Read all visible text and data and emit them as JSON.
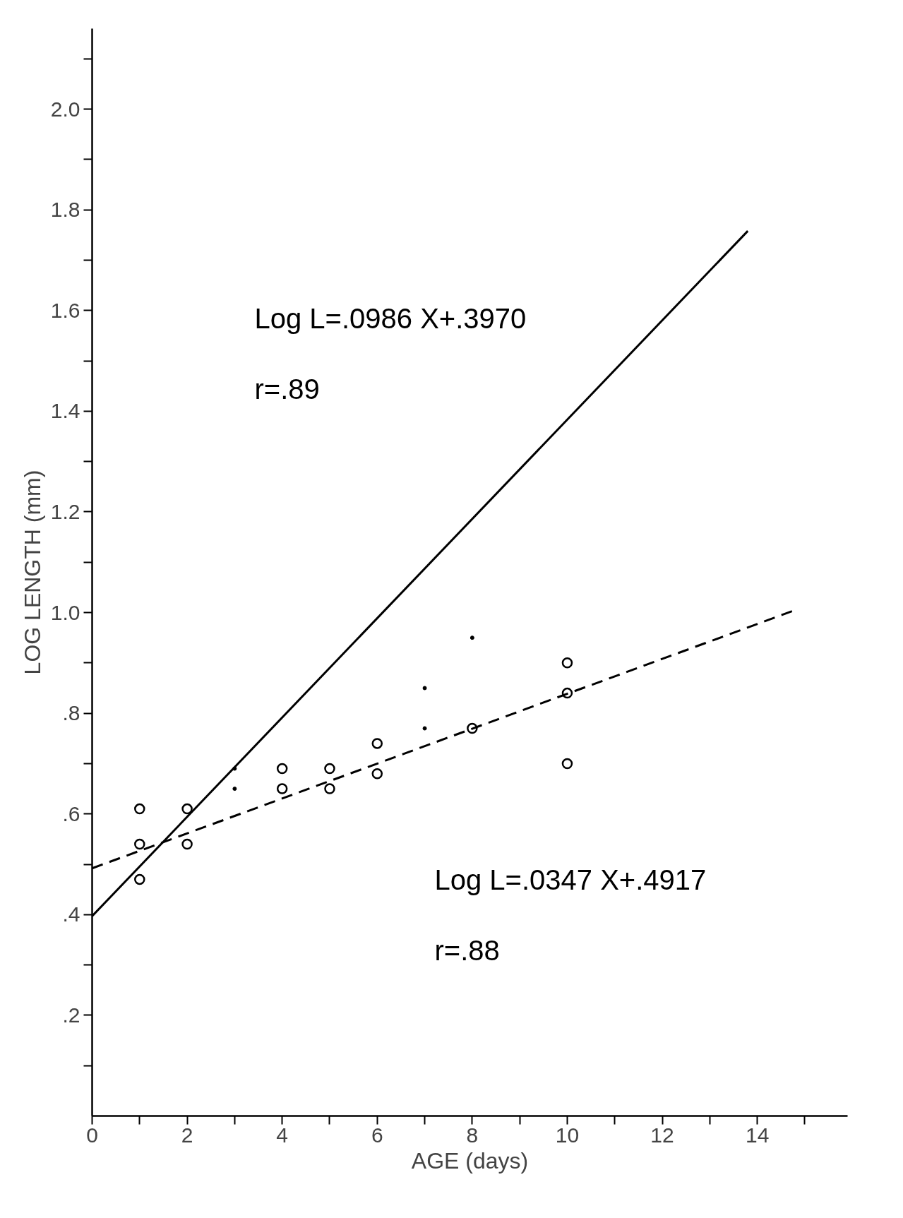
{
  "chart_data": {
    "type": "scatter",
    "xlabel": "AGE (days)",
    "ylabel": "LOG LENGTH (mm)",
    "xlim": [
      0,
      15.9
    ],
    "ylim": [
      0,
      2.16
    ],
    "xticks": [
      {
        "value": 0,
        "label": "0"
      },
      {
        "value": 1,
        "label": null
      },
      2,
      {
        "value": 3,
        "label": null
      },
      4,
      {
        "value": 5,
        "label": null
      },
      6,
      {
        "value": 7,
        "label": null
      },
      8,
      {
        "value": 9,
        "label": null
      },
      10,
      {
        "value": 11,
        "label": null
      },
      12,
      {
        "value": 13,
        "label": null
      },
      14,
      {
        "value": 15,
        "label": null
      }
    ],
    "yticks": [
      {
        "value": 0.1,
        "label": null
      },
      {
        "value": 0.2,
        "label": ".2"
      },
      {
        "value": 0.3,
        "label": null
      },
      {
        "value": 0.4,
        "label": ".4"
      },
      {
        "value": 0.5,
        "label": null
      },
      {
        "value": 0.6,
        "label": ".6"
      },
      {
        "value": 0.7,
        "label": null
      },
      {
        "value": 0.8,
        "label": ".8"
      },
      {
        "value": 0.9,
        "label": null
      },
      {
        "value": 1.0,
        "label": "1.0"
      },
      {
        "value": 1.1,
        "label": null
      },
      {
        "value": 1.2,
        "label": "1.2"
      },
      {
        "value": 1.3,
        "label": null
      },
      {
        "value": 1.4,
        "label": "1.4"
      },
      {
        "value": 1.5,
        "label": null
      },
      {
        "value": 1.6,
        "label": "1.6"
      },
      {
        "value": 1.7,
        "label": null
      },
      {
        "value": 1.8,
        "label": "1.8"
      },
      {
        "value": 1.9,
        "label": null
      },
      {
        "value": 2.0,
        "label": "2.0"
      },
      {
        "value": 2.1,
        "label": null
      }
    ],
    "grid": false,
    "series": [
      {
        "marker": "circle",
        "color": "#000000",
        "x": [
          1,
          1,
          1,
          2,
          2,
          4,
          4,
          5,
          5,
          6,
          6,
          8,
          10,
          10,
          10
        ],
        "values": [
          0.61,
          0.54,
          0.47,
          0.61,
          0.54,
          0.69,
          0.65,
          0.69,
          0.65,
          0.74,
          0.68,
          0.77,
          0.9,
          0.84,
          0.7
        ]
      },
      {
        "marker": "dot",
        "color": "#000000",
        "x": [
          3,
          3,
          7,
          7,
          8
        ],
        "values": [
          0.69,
          0.65,
          0.85,
          0.77,
          0.95
        ]
      },
      {
        "type": "line",
        "line_style": "solid",
        "color": "#000000",
        "x": [
          0,
          13.8
        ],
        "values": [
          0.397,
          1.758
        ]
      },
      {
        "type": "line",
        "line_style": "dashed",
        "color": "#000000",
        "x": [
          0,
          14.8
        ],
        "values": [
          0.492,
          1.005
        ]
      }
    ],
    "annotations": [
      "Log L=.0986 X+.3970",
      "r=.89",
      "Log L=.0347 X+.4917",
      "r=.88"
    ]
  }
}
